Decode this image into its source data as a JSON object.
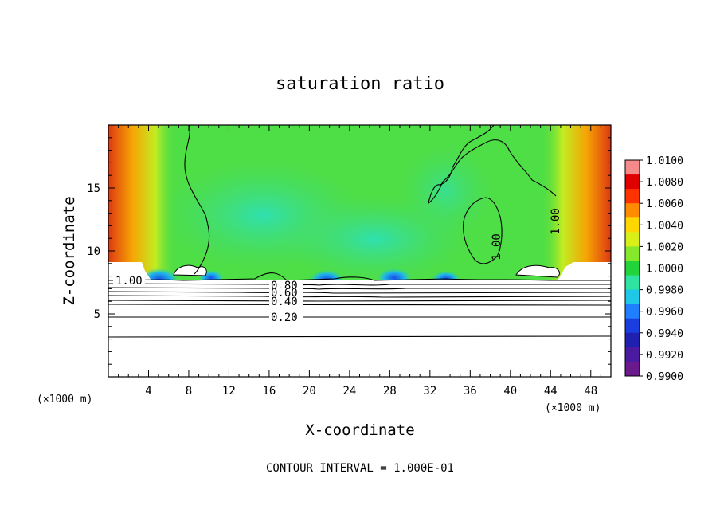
{
  "chart_data": {
    "type": "heatmap",
    "title": "saturation ratio",
    "xlabel": "X-coordinate",
    "ylabel": "Z-coordinate",
    "x_unit": "(×1000 m)",
    "x_unit_left": "(×1000 m)",
    "xlim": [
      0,
      50
    ],
    "ylim": [
      0,
      20
    ],
    "x_ticks": [
      "4",
      "8",
      "12",
      "16",
      "20",
      "24",
      "28",
      "32",
      "36",
      "40",
      "44",
      "48"
    ],
    "y_ticks": [
      "5",
      "10",
      "15"
    ],
    "colorbar": {
      "labels": [
        "1.0100",
        "1.0080",
        "1.0060",
        "1.0040",
        "1.0020",
        "1.0000",
        "0.9980",
        "0.9960",
        "0.9940",
        "0.9920",
        "0.9900"
      ],
      "colors": [
        "#f58a8a",
        "#e00000",
        "#ff3300",
        "#ff8c00",
        "#ffd700",
        "#d8f018",
        "#86e82a",
        "#22d43a",
        "#2fe3a0",
        "#1fc8e6",
        "#1f7fff",
        "#1a3de0",
        "#2020b0",
        "#4a1aa0",
        "#6a1a8c"
      ]
    },
    "contour_labels": [
      "1.00",
      "1.00",
      "1.00",
      "0.80",
      "0.60",
      "0.40",
      "0.20"
    ],
    "note": "CONTOUR INTERVAL = 1.000E-01"
  }
}
